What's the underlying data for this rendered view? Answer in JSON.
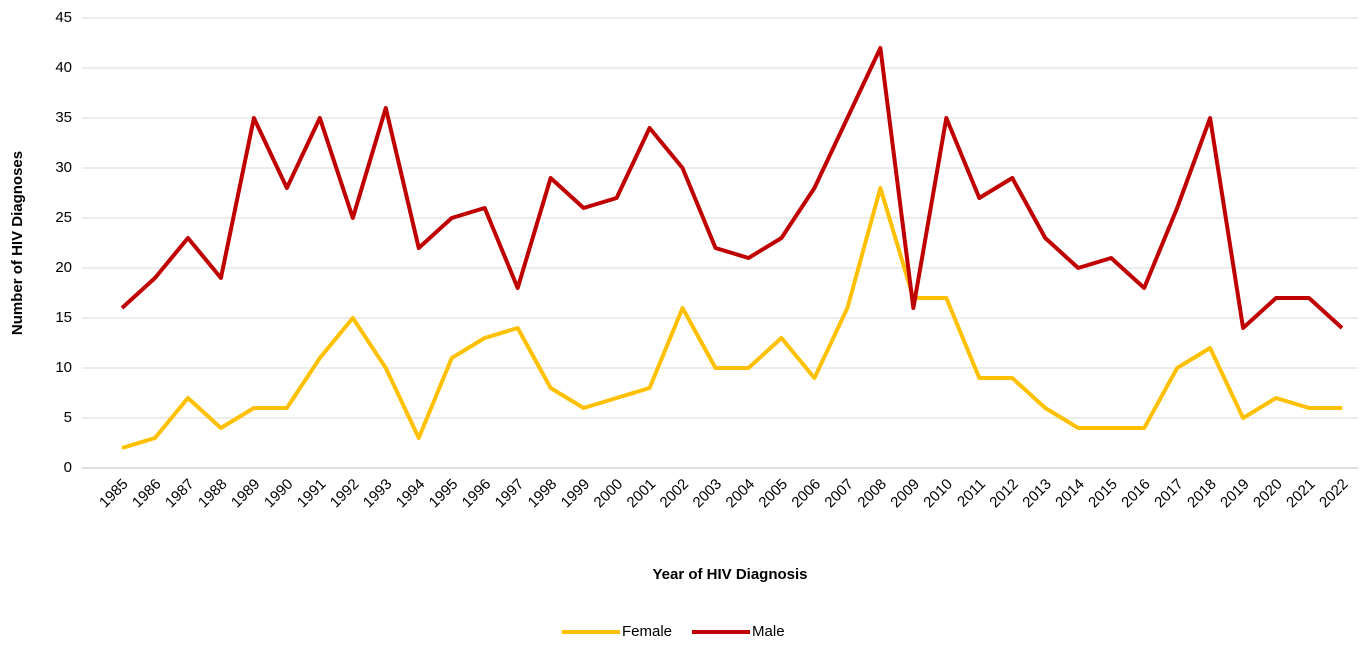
{
  "chart_data": {
    "type": "line",
    "xlabel": "Year of HIV Diagnosis",
    "ylabel": "Number of HIV Diagnoses",
    "categories": [
      "1985",
      "1986",
      "1987",
      "1988",
      "1989",
      "1990",
      "1991",
      "1992",
      "1993",
      "1994",
      "1995",
      "1996",
      "1997",
      "1998",
      "1999",
      "2000",
      "2001",
      "2002",
      "2003",
      "2004",
      "2005",
      "2006",
      "2007",
      "2008",
      "2009",
      "2010",
      "2011",
      "2012",
      "2013",
      "2014",
      "2015",
      "2016",
      "2017",
      "2018",
      "2019",
      "2020",
      "2021",
      "2022"
    ],
    "series": [
      {
        "name": "Female",
        "color": "#ffc000",
        "values": [
          2,
          3,
          7,
          4,
          6,
          6,
          11,
          15,
          10,
          3,
          11,
          13,
          14,
          8,
          6,
          7,
          8,
          16,
          10,
          10,
          13,
          9,
          16,
          28,
          17,
          17,
          9,
          9,
          6,
          4,
          4,
          4,
          10,
          12,
          5,
          7,
          6,
          6
        ]
      },
      {
        "name": "Male",
        "color": "#c00000",
        "values": [
          16,
          19,
          23,
          19,
          35,
          28,
          35,
          25,
          36,
          22,
          25,
          26,
          18,
          29,
          26,
          27,
          34,
          30,
          22,
          21,
          23,
          28,
          35,
          42,
          16,
          35,
          27,
          29,
          23,
          20,
          21,
          18,
          26,
          35,
          14,
          17,
          17,
          14
        ]
      }
    ],
    "ylim": [
      0,
      45
    ],
    "yticks": [
      0,
      5,
      10,
      15,
      20,
      25,
      30,
      35,
      40,
      45
    ],
    "grid": true,
    "legend": "bottom"
  }
}
